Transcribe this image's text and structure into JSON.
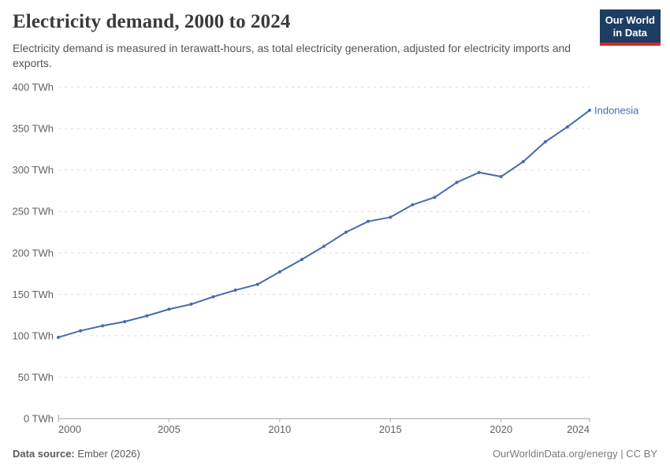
{
  "header": {
    "title": "Electricity demand, 2000 to 2024",
    "subtitle": "Electricity demand is measured in terawatt-hours, as total electricity generation, adjusted for electricity imports and exports."
  },
  "logo": {
    "line1": "Our World",
    "line2": "in Data",
    "bg_color": "#1d3d63",
    "accent_color": "#d42b21"
  },
  "chart_data": {
    "type": "line",
    "title": "Electricity demand, 2000 to 2024",
    "unit": "TWh",
    "xlabel": "",
    "ylabel": "",
    "ylim": [
      0,
      400
    ],
    "yticks": [
      0,
      50,
      100,
      150,
      200,
      250,
      300,
      350,
      400
    ],
    "xticks": [
      2000,
      2005,
      2010,
      2015,
      2020,
      2024
    ],
    "grid": "horizontal-dashed",
    "legend_position": "end-of-line-label",
    "x": [
      2000,
      2001,
      2002,
      2003,
      2004,
      2005,
      2006,
      2007,
      2008,
      2009,
      2010,
      2011,
      2012,
      2013,
      2014,
      2015,
      2016,
      2017,
      2018,
      2019,
      2020,
      2021,
      2022,
      2023,
      2024
    ],
    "series": [
      {
        "name": "Indonesia",
        "color": "#4a69ad",
        "values": [
          98,
          106,
          112,
          117,
          124,
          132,
          138,
          147,
          155,
          162,
          177,
          192,
          208,
          225,
          238,
          243,
          258,
          267,
          285,
          297,
          292,
          310,
          334,
          352,
          372
        ]
      }
    ]
  },
  "footer": {
    "source_label": "Data source:",
    "source_value": "Ember (2026)",
    "credit": "OurWorldinData.org/energy | CC BY"
  }
}
